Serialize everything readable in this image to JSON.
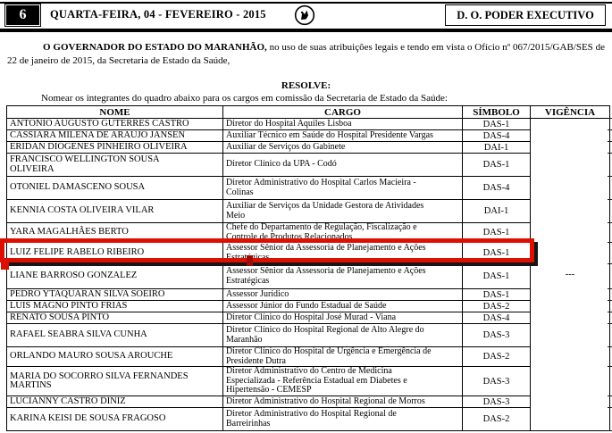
{
  "header": {
    "page_number": "6",
    "date_line": "QUARTA-FEIRA, 04 - FEVEREIRO - 2015",
    "edition_label": "D. O. PODER EXECUTIVO",
    "emblem_icon": "maranhao-coat-of-arms"
  },
  "body": {
    "paragraph_bold": "O GOVERNADOR DO ESTADO DO MARANHÃO,",
    "paragraph_rest": " no uso de suas atribuições legais e tendo em vista o Ofício nº 067/2015/GAB/SES de 22 de janeiro de 2015, da Secretaria de Estado da Saúde,",
    "resolve_label": "RESOLVE:",
    "table_intro": "Nomear os integrantes do quadro abaixo para os cargos em comissão da Secretaria de Estado da Saúde:"
  },
  "table": {
    "columns": [
      "NOME",
      "CARGO",
      "SÍMBOLO",
      "VIGÊNCIA"
    ],
    "vigencia_value": "---",
    "rows": [
      {
        "name": "ANTONIO AUGUSTO GUTERRES CASTRO",
        "cargo": "Diretor do Hospital Aquiles Lisboa",
        "simbolo": "DAS-1",
        "highlighted": false
      },
      {
        "name": "CASSIARA MILENA DE ARAUJO JANSEN",
        "cargo": "Auxiliar Técnico em Saúde do Hospital Presidente Vargas",
        "simbolo": "DAS-4",
        "highlighted": false
      },
      {
        "name": "ERIDAN DIÓGENES PINHEIRO OLIVEIRA",
        "cargo": "Auxiliar de Serviços do Gabinete",
        "simbolo": "DAI-1",
        "highlighted": false
      },
      {
        "name": "FRANCISCO WELLINGTON SOUSA\nOLIVEIRA",
        "cargo": "Diretor Clínico da UPA - Codó",
        "simbolo": "DAS-1",
        "highlighted": false
      },
      {
        "name": "OTONIEL DAMASCENO SOUSA",
        "cargo": "Diretor Administrativo do Hospital Carlos Macieira -\nColinas",
        "simbolo": "DAS-4",
        "highlighted": false
      },
      {
        "name": "KENNIA COSTA OLIVEIRA VILAR",
        "cargo": "Auxiliar de Serviços da Unidade Gestora de Atividades\nMeio",
        "simbolo": "DAI-1",
        "highlighted": false
      },
      {
        "name": "YARA MAGALHÃES BERTO",
        "cargo": "Chefe do Departamento de Regulação, Fiscalização e\nControle de Produtos Relacionados",
        "simbolo": "DAS-1",
        "highlighted": false
      },
      {
        "name": "LUIZ FELIPE RABELO RIBEIRO",
        "cargo": "Assessor Sênior da Assessoria de Planejamento e Ações\nEstratégicas",
        "simbolo": "DAS-1",
        "highlighted": true
      },
      {
        "name": "LIANE BARROSO GONZALEZ",
        "cargo": "Assessor Sênior da Assessoria de Planejamento e Ações\nEstratégicas",
        "simbolo": "DAS-1",
        "highlighted": false
      },
      {
        "name": "PEDRO YTAQUARAN SILVA SOEIRO",
        "cargo": "Assessor Jurídico",
        "simbolo": "DAS-1",
        "highlighted": false
      },
      {
        "name": "LUIS MAGNO PINTO FRIAS",
        "cargo": "Assessor Júnior do Fundo Estadual de Saúde",
        "simbolo": "DAS-2",
        "highlighted": false
      },
      {
        "name": "RENATO SOUSA PINTO",
        "cargo": "Diretor Clínico do Hospital José Murad - Viana",
        "simbolo": "DAS-4",
        "highlighted": false
      },
      {
        "name": "RAFAEL SEABRA SILVA CUNHA",
        "cargo": "Diretor Clínico do Hospital Regional de Alto Alegre do\nMaranhão",
        "simbolo": "DAS-3",
        "highlighted": false
      },
      {
        "name": "ORLANDO MAURO SOUSA AROUCHE",
        "cargo": "Diretor Clínico do Hospital de Urgência e Emergência de\nPresidente Dutra",
        "simbolo": "DAS-2",
        "highlighted": false
      },
      {
        "name": "MARIA DO SOCORRO SILVA FERNANDES\nMARTINS",
        "cargo": "Diretor Administrativo do Centro de Medicina\nEspecializada - Referência Estadual em Diabetes e\nHipertensão - CEMESP",
        "simbolo": "DAS-3",
        "highlighted": false
      },
      {
        "name": "LUCIANNY CASTRO DINIZ",
        "cargo": "Diretor Administrativo do Hospital Regional de Morros",
        "simbolo": "DAS-3",
        "highlighted": false
      },
      {
        "name": "KARINA KEISI DE SOUSA FRAGOSO",
        "cargo": "Diretor Administrativo do Hospital Regional de\nBarreirinhas",
        "simbolo": "DAS-2",
        "highlighted": false
      }
    ]
  },
  "annotation": {
    "box_color": "#dc1000",
    "shadow_color": "#161616"
  }
}
